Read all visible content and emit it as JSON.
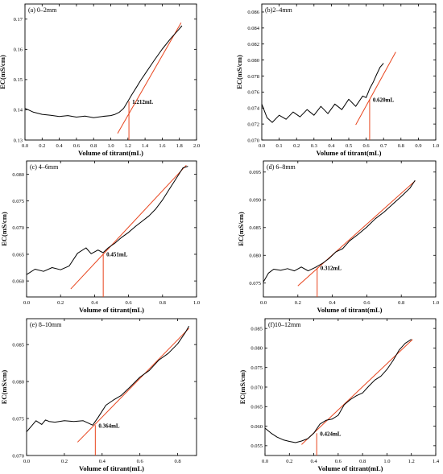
{
  "chart_data": [
    {
      "type": "line",
      "panel_label": "(a) 0–2mm",
      "xlabel": "Volume of titrant(mL)",
      "ylabel": "EC(mS/cm)",
      "xlim": [
        0.0,
        2.0
      ],
      "ylim": [
        0.13,
        0.175
      ],
      "xticks": [
        0.0,
        0.2,
        0.4,
        0.6,
        0.8,
        1.0,
        1.2,
        1.4,
        1.6,
        1.8,
        2.0
      ],
      "xtick_labels": [
        "0.0",
        "0.2",
        "0.4",
        "0.6",
        "0.8",
        "1.0",
        "1.2",
        "1.4",
        "1.6",
        "1.8",
        "2.0"
      ],
      "yticks": [
        0.13,
        0.14,
        0.15,
        0.16,
        0.17
      ],
      "ytick_labels": [
        "0.13",
        "0.14",
        "0.15",
        "0.16",
        "0.17"
      ],
      "series": [
        {
          "color": "#000000",
          "x": [
            0.0,
            0.1,
            0.2,
            0.3,
            0.4,
            0.5,
            0.6,
            0.7,
            0.8,
            0.9,
            1.0,
            1.05,
            1.1,
            1.15,
            1.2,
            1.25,
            1.3,
            1.35,
            1.4,
            1.5,
            1.6,
            1.7,
            1.8,
            1.83
          ],
          "y": [
            0.1405,
            0.1392,
            0.1385,
            0.1382,
            0.1378,
            0.1381,
            0.1376,
            0.1379,
            0.1374,
            0.1378,
            0.1381,
            0.1385,
            0.1392,
            0.1405,
            0.1428,
            0.1452,
            0.1475,
            0.1498,
            0.1519,
            0.1561,
            0.1601,
            0.1636,
            0.1668,
            0.1678
          ]
        }
      ],
      "fit_line": {
        "color": "#e8451e",
        "x": [
          1.08,
          1.82
        ],
        "y": [
          0.1322,
          0.1688
        ]
      },
      "annotation": {
        "text": "1.212mL",
        "x": 1.212,
        "y": 0.1428,
        "color": "#e8451e"
      }
    },
    {
      "type": "line",
      "panel_label": "(b)2–4mm",
      "xlabel": "Volume of titrant(mL)",
      "ylabel": "EC(mS/cm)",
      "xlim": [
        0.0,
        1.0
      ],
      "ylim": [
        0.07,
        0.087
      ],
      "xticks": [
        0.0,
        0.1,
        0.2,
        0.3,
        0.4,
        0.5,
        0.6,
        0.7,
        0.8,
        0.9,
        1.0
      ],
      "xtick_labels": [
        "0.0",
        "0.1",
        "0.2",
        "0.3",
        "0.4",
        "0.5",
        "0.6",
        "0.7",
        "0.8",
        "0.9",
        "1.0"
      ],
      "yticks": [
        0.07,
        0.072,
        0.074,
        0.076,
        0.078,
        0.08,
        0.082,
        0.084,
        0.086
      ],
      "ytick_labels": [
        "0.070",
        "0.072",
        "0.074",
        "0.076",
        "0.078",
        "0.080",
        "0.082",
        "0.084",
        "0.086"
      ],
      "series": [
        {
          "color": "#000000",
          "x": [
            0.0,
            0.03,
            0.06,
            0.1,
            0.14,
            0.18,
            0.22,
            0.26,
            0.3,
            0.34,
            0.38,
            0.42,
            0.46,
            0.5,
            0.54,
            0.58,
            0.6,
            0.62,
            0.64,
            0.66,
            0.68,
            0.7
          ],
          "y": [
            0.0745,
            0.0728,
            0.0722,
            0.0731,
            0.0726,
            0.0735,
            0.0729,
            0.0738,
            0.0731,
            0.0742,
            0.0733,
            0.0745,
            0.0738,
            0.0751,
            0.0742,
            0.0755,
            0.0753,
            0.0764,
            0.0772,
            0.0782,
            0.0791,
            0.0796
          ]
        }
      ],
      "fit_line": {
        "color": "#e8451e",
        "x": [
          0.54,
          0.77
        ],
        "y": [
          0.0719,
          0.081
        ]
      },
      "annotation": {
        "text": "0.620mL",
        "x": 0.62,
        "y": 0.0751,
        "color": "#e8451e"
      }
    },
    {
      "type": "line",
      "panel_label": "(c) 4–6mm",
      "xlabel": "Volume of titrant(mL)",
      "ylabel": "EC(mS/cm)",
      "xlim": [
        0.0,
        1.0
      ],
      "ylim": [
        0.057,
        0.0825
      ],
      "xticks": [
        0.0,
        0.2,
        0.4,
        0.6,
        0.8,
        1.0
      ],
      "xtick_labels": [
        "0.0",
        "0.2",
        "0.4",
        "0.6",
        "0.8",
        "1.0"
      ],
      "yticks": [
        0.06,
        0.065,
        0.07,
        0.075,
        0.08
      ],
      "ytick_labels": [
        "0.060",
        "0.065",
        "0.070",
        "0.075",
        "0.080"
      ],
      "series": [
        {
          "color": "#000000",
          "x": [
            0.0,
            0.05,
            0.1,
            0.15,
            0.2,
            0.25,
            0.3,
            0.35,
            0.38,
            0.42,
            0.45,
            0.48,
            0.52,
            0.56,
            0.6,
            0.64,
            0.68,
            0.72,
            0.76,
            0.8,
            0.84,
            0.88,
            0.92,
            0.95
          ],
          "y": [
            0.0612,
            0.0622,
            0.0618,
            0.0625,
            0.0621,
            0.0628,
            0.0652,
            0.0662,
            0.0651,
            0.0658,
            0.0653,
            0.0662,
            0.0671,
            0.0682,
            0.0691,
            0.0702,
            0.0712,
            0.0722,
            0.0735,
            0.0752,
            0.0772,
            0.0792,
            0.0812,
            0.0815
          ]
        }
      ],
      "fit_line": {
        "color": "#e8451e",
        "x": [
          0.26,
          0.94
        ],
        "y": [
          0.0585,
          0.0817
        ]
      },
      "annotation": {
        "text": "0.451mL",
        "x": 0.451,
        "y": 0.0651,
        "color": "#e8451e"
      }
    },
    {
      "type": "line",
      "panel_label": "(d) 6–8mm",
      "xlabel": "Volume of titrant(mL)",
      "ylabel": "EC(mS/cm)",
      "xlim": [
        0.0,
        1.0
      ],
      "ylim": [
        0.0725,
        0.097
      ],
      "xticks": [
        0.0,
        0.2,
        0.4,
        0.6,
        0.8,
        1.0
      ],
      "xtick_labels": [
        "0.0",
        "0.2",
        "0.4",
        "0.6",
        "0.8",
        "1.0"
      ],
      "yticks": [
        0.075,
        0.08,
        0.085,
        0.09,
        0.095
      ],
      "ytick_labels": [
        "0.075",
        "0.080",
        "0.085",
        "0.090",
        "0.095"
      ],
      "series": [
        {
          "color": "#000000",
          "x": [
            0.0,
            0.03,
            0.06,
            0.1,
            0.14,
            0.18,
            0.22,
            0.26,
            0.3,
            0.34,
            0.38,
            0.42,
            0.46,
            0.5,
            0.55,
            0.6,
            0.65,
            0.7,
            0.75,
            0.8,
            0.85,
            0.88
          ],
          "y": [
            0.0752,
            0.0768,
            0.0775,
            0.0773,
            0.0776,
            0.0772,
            0.0779,
            0.0772,
            0.0778,
            0.0785,
            0.0794,
            0.0806,
            0.0812,
            0.0826,
            0.0838,
            0.0851,
            0.0866,
            0.0878,
            0.0892,
            0.0906,
            0.0921,
            0.0935
          ]
        }
      ],
      "fit_line": {
        "color": "#e8451e",
        "x": [
          0.2,
          0.88
        ],
        "y": [
          0.0745,
          0.0934
        ]
      },
      "annotation": {
        "text": "0.312mL",
        "x": 0.312,
        "y": 0.0778,
        "color": "#e8451e"
      }
    },
    {
      "type": "line",
      "panel_label": "(e) 8–10mm",
      "xlabel": "Volume of titrant(mL)",
      "ylabel": "EC(mS/cm)",
      "xlim": [
        0.0,
        0.9
      ],
      "ylim": [
        0.07,
        0.0885
      ],
      "xticks": [
        0.0,
        0.2,
        0.4,
        0.6,
        0.8
      ],
      "xtick_labels": [
        "0.0",
        "0.2",
        "0.4",
        "0.6",
        "0.8"
      ],
      "yticks": [
        0.07,
        0.075,
        0.08,
        0.085
      ],
      "ytick_labels": [
        "0.070",
        "0.075",
        "0.080",
        "0.085"
      ],
      "series": [
        {
          "color": "#000000",
          "x": [
            0.0,
            0.02,
            0.05,
            0.08,
            0.1,
            0.12,
            0.15,
            0.2,
            0.25,
            0.3,
            0.35,
            0.38,
            0.42,
            0.46,
            0.5,
            0.55,
            0.6,
            0.65,
            0.7,
            0.75,
            0.8,
            0.84,
            0.86
          ],
          "y": [
            0.0732,
            0.0738,
            0.0747,
            0.0742,
            0.0748,
            0.0746,
            0.0745,
            0.0747,
            0.0746,
            0.0747,
            0.0741,
            0.0752,
            0.0768,
            0.0775,
            0.0781,
            0.0793,
            0.0806,
            0.0815,
            0.0829,
            0.0838,
            0.0851,
            0.0866,
            0.0875
          ]
        }
      ],
      "fit_line": {
        "color": "#e8451e",
        "x": [
          0.27,
          0.86
        ],
        "y": [
          0.0718,
          0.0872
        ]
      },
      "annotation": {
        "text": "0.364mL",
        "x": 0.364,
        "y": 0.0741,
        "color": "#e8451e"
      }
    },
    {
      "type": "line",
      "panel_label": "(f)10–12mm",
      "xlabel": "Volume of titrant(mL)",
      "ylabel": "EC(mS/cm)",
      "xlim": [
        0.0,
        1.4
      ],
      "ylim": [
        0.0525,
        0.0875
      ],
      "xticks": [
        0.0,
        0.2,
        0.4,
        0.6,
        0.8,
        1.0,
        1.2,
        1.4
      ],
      "xtick_labels": [
        "0.0",
        "0.2",
        "0.4",
        "0.6",
        "0.8",
        "1.0",
        "1.2",
        "1.4"
      ],
      "yticks": [
        0.055,
        0.06,
        0.065,
        0.07,
        0.075,
        0.08,
        0.085
      ],
      "ytick_labels": [
        "0.055",
        "0.060",
        "0.065",
        "0.070",
        "0.075",
        "0.080",
        "0.085"
      ],
      "series": [
        {
          "color": "#000000",
          "x": [
            0.0,
            0.05,
            0.1,
            0.15,
            0.2,
            0.25,
            0.3,
            0.35,
            0.4,
            0.45,
            0.5,
            0.55,
            0.6,
            0.65,
            0.7,
            0.75,
            0.8,
            0.85,
            0.9,
            0.95,
            1.0,
            1.05,
            1.1,
            1.15,
            1.2
          ],
          "y": [
            0.0595,
            0.0582,
            0.0572,
            0.0565,
            0.0561,
            0.0558,
            0.0562,
            0.0568,
            0.0582,
            0.0605,
            0.0615,
            0.0618,
            0.0628,
            0.0655,
            0.0668,
            0.0678,
            0.0685,
            0.0702,
            0.0718,
            0.0728,
            0.0745,
            0.0768,
            0.0795,
            0.0812,
            0.0822
          ]
        }
      ],
      "fit_line": {
        "color": "#e8451e",
        "x": [
          0.3,
          1.21
        ],
        "y": [
          0.0553,
          0.0822
        ]
      },
      "annotation": {
        "text": "0.424mL",
        "x": 0.424,
        "y": 0.0582,
        "color": "#e8451e"
      }
    }
  ]
}
